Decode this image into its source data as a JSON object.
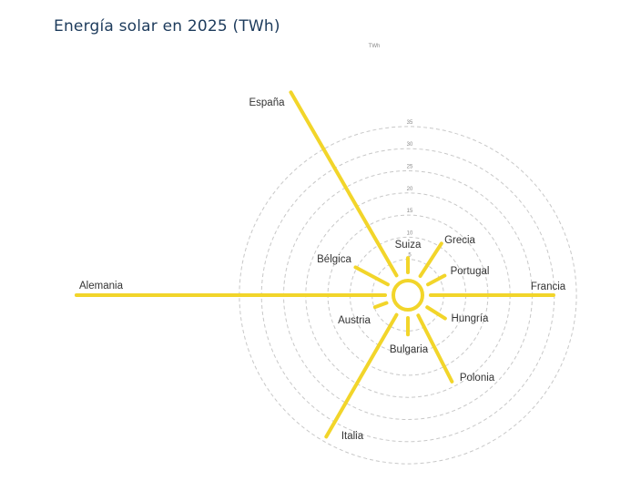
{
  "chart_data": {
    "type": "radial-bar",
    "title": "Energía solar en 2025 (TWh)",
    "unit_label": "TWh",
    "radial_ticks": [
      5,
      10,
      15,
      20,
      25,
      30,
      35
    ],
    "grid": true,
    "color": "#f2d52a",
    "categories": [
      "Suiza",
      "Grecia",
      "Portugal",
      "Francia",
      "Hungría",
      "Polonia",
      "Bulgaria",
      "Italia",
      "Austria",
      "Alemania",
      "Bélgica",
      "España"
    ],
    "values": [
      4.5,
      10,
      5.5,
      29,
      6,
      18,
      5,
      33,
      4,
      71,
      9.5,
      49
    ]
  }
}
